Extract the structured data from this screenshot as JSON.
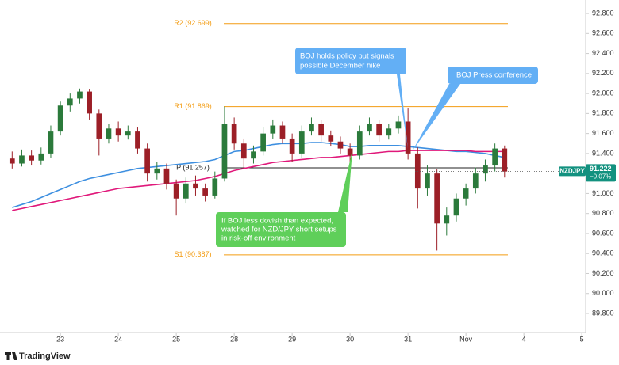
{
  "chart_data": {
    "type": "candlestick",
    "source": "TradingView",
    "x": [
      1,
      2,
      3,
      4,
      5,
      6,
      7,
      8,
      9,
      10,
      11,
      12,
      13,
      14,
      15,
      16,
      17,
      18,
      19,
      20,
      21,
      22,
      23,
      24,
      25,
      26,
      27,
      28,
      29,
      30,
      31,
      32,
      33,
      34,
      35,
      36,
      37,
      38,
      39,
      40,
      41,
      42,
      43,
      44,
      45,
      46,
      47,
      48,
      49,
      50,
      51,
      52
    ],
    "open": [
      91.35,
      91.3,
      91.38,
      91.33,
      91.4,
      91.62,
      91.88,
      91.95,
      92.02,
      91.8,
      91.55,
      91.65,
      91.58,
      91.62,
      91.45,
      91.2,
      91.25,
      91.1,
      90.95,
      91.1,
      91.05,
      90.98,
      91.15,
      91.7,
      91.5,
      91.35,
      91.42,
      91.6,
      91.68,
      91.55,
      91.4,
      91.62,
      91.7,
      91.58,
      91.52,
      91.45,
      91.38,
      91.62,
      91.7,
      91.58,
      91.65,
      91.72,
      91.4,
      91.05,
      91.2,
      90.7,
      90.78,
      90.95,
      91.05,
      91.2,
      91.28,
      91.45
    ],
    "high": [
      91.42,
      91.44,
      91.43,
      91.46,
      91.68,
      91.92,
      92.0,
      92.05,
      92.04,
      91.84,
      91.7,
      91.72,
      91.68,
      91.66,
      91.5,
      91.32,
      91.3,
      91.14,
      91.16,
      91.18,
      91.1,
      91.22,
      91.87,
      91.76,
      91.55,
      91.48,
      91.66,
      91.74,
      91.72,
      91.6,
      91.68,
      91.76,
      91.74,
      91.63,
      91.57,
      91.5,
      91.68,
      91.76,
      91.74,
      91.7,
      91.78,
      91.85,
      91.46,
      91.28,
      91.24,
      90.86,
      91.0,
      91.1,
      91.26,
      91.34,
      91.5,
      91.48
    ],
    "low": [
      91.25,
      91.27,
      91.28,
      91.29,
      91.36,
      91.58,
      91.82,
      91.9,
      91.74,
      91.38,
      91.5,
      91.52,
      91.54,
      91.4,
      91.12,
      91.14,
      91.04,
      90.78,
      90.9,
      90.98,
      90.92,
      90.95,
      91.12,
      91.44,
      91.25,
      91.3,
      91.38,
      91.55,
      91.5,
      91.32,
      91.36,
      91.58,
      91.52,
      91.47,
      91.4,
      91.3,
      91.34,
      91.58,
      91.52,
      91.54,
      91.6,
      91.34,
      90.85,
      90.98,
      90.43,
      90.58,
      90.72,
      90.88,
      91.0,
      91.12,
      91.22,
      91.16
    ],
    "close": [
      91.3,
      91.38,
      91.33,
      91.4,
      91.62,
      91.88,
      91.95,
      92.02,
      91.8,
      91.55,
      91.65,
      91.58,
      91.62,
      91.45,
      91.2,
      91.25,
      91.1,
      90.95,
      91.1,
      91.05,
      90.98,
      91.15,
      91.7,
      91.5,
      91.35,
      91.42,
      91.6,
      91.68,
      91.55,
      91.4,
      91.62,
      91.7,
      91.58,
      91.52,
      91.45,
      91.38,
      91.62,
      91.7,
      91.58,
      91.65,
      91.72,
      91.4,
      91.05,
      91.2,
      90.7,
      90.78,
      90.95,
      91.05,
      91.2,
      91.28,
      91.45,
      91.22
    ],
    "up_color": "#2b7a3b",
    "down_color": "#9c1f27",
    "lines": [
      {
        "color": "#3d8fe0",
        "values": [
          90.86,
          90.89,
          90.92,
          90.96,
          91.0,
          91.04,
          91.08,
          91.12,
          91.15,
          91.17,
          91.19,
          91.21,
          91.23,
          91.25,
          91.26,
          91.27,
          91.28,
          91.29,
          91.3,
          91.31,
          91.32,
          91.34,
          91.38,
          91.42,
          91.43,
          91.45,
          91.47,
          91.49,
          91.5,
          91.5,
          91.5,
          91.51,
          91.51,
          91.5,
          91.49,
          91.47,
          91.47,
          91.48,
          91.48,
          91.48,
          91.48,
          91.47,
          91.46,
          91.45,
          91.44,
          91.43,
          91.42,
          91.42,
          91.41,
          91.4,
          91.38,
          91.36
        ]
      },
      {
        "color": "#e0187a",
        "values": [
          90.83,
          90.85,
          90.87,
          90.89,
          90.91,
          90.93,
          90.95,
          90.97,
          90.99,
          91.01,
          91.03,
          91.05,
          91.06,
          91.07,
          91.08,
          91.09,
          91.1,
          91.11,
          91.12,
          91.13,
          91.15,
          91.17,
          91.2,
          91.23,
          91.25,
          91.27,
          91.29,
          91.31,
          91.32,
          91.33,
          91.34,
          91.35,
          91.36,
          91.36,
          91.37,
          91.38,
          91.39,
          91.4,
          91.41,
          91.42,
          91.42,
          91.43,
          91.43,
          91.43,
          91.43,
          91.43,
          91.43,
          91.43,
          91.42,
          91.42,
          91.42,
          91.42
        ]
      }
    ],
    "levels": [
      {
        "value": 92.699,
        "label": "R2 (92.699)",
        "color": "#f39c12"
      },
      {
        "value": 91.869,
        "label": "R1 (91.869)",
        "color": "#f39c12"
      },
      {
        "value": 91.257,
        "label": "P (91.257)",
        "color": "#222222"
      },
      {
        "value": 90.387,
        "label": "S1 (90.387)",
        "color": "#f39c12"
      }
    ],
    "price": {
      "symbol": "NZDJPY",
      "value": 91.222,
      "label": "91.222",
      "change": "−0.07%",
      "color": "#12917f"
    },
    "annotations": [
      {
        "lines": [
          "BOJ holds policy but signals",
          "possible December hike"
        ],
        "color": "#63aff5"
      },
      {
        "lines": [
          "BOJ Press conference"
        ],
        "color": "#63aff5"
      },
      {
        "lines": [
          "If BOJ less dovish than expected,",
          "watched for NZD/JPY short setups",
          "in risk-off environment"
        ],
        "color": "#5fcf5a"
      }
    ],
    "xlim": [
      0.4,
      60.4
    ],
    "xticks": [
      {
        "value": 6,
        "label": "23"
      },
      {
        "value": 12,
        "label": "24"
      },
      {
        "value": 18,
        "label": "25"
      },
      {
        "value": 24,
        "label": "28"
      },
      {
        "value": 30,
        "label": "29"
      },
      {
        "value": 36,
        "label": "30"
      },
      {
        "value": 42,
        "label": "31"
      },
      {
        "value": 48,
        "label": "Nov"
      },
      {
        "value": 54,
        "label": "4"
      },
      {
        "value": 60,
        "label": "5"
      }
    ],
    "ylim": [
      89.61,
      92.935
    ],
    "yticks": [
      {
        "value": 89.8,
        "label": "89.800"
      },
      {
        "value": 90.0,
        "label": "90.000"
      },
      {
        "value": 90.2,
        "label": "90.200"
      },
      {
        "value": 90.4,
        "label": "90.400"
      },
      {
        "value": 90.6,
        "label": "90.600"
      },
      {
        "value": 90.8,
        "label": "90.800"
      },
      {
        "value": 91.0,
        "label": "91.000"
      },
      {
        "value": 91.2,
        "label": "91.200"
      },
      {
        "value": 91.4,
        "label": "91.400"
      },
      {
        "value": 91.6,
        "label": "91.600"
      },
      {
        "value": 91.8,
        "label": "91.800"
      },
      {
        "value": 92.0,
        "label": "92.000"
      },
      {
        "value": 92.2,
        "label": "92.200"
      },
      {
        "value": 92.4,
        "label": "92.400"
      },
      {
        "value": 92.6,
        "label": "92.600"
      },
      {
        "value": 92.8,
        "label": "92.800"
      }
    ]
  }
}
